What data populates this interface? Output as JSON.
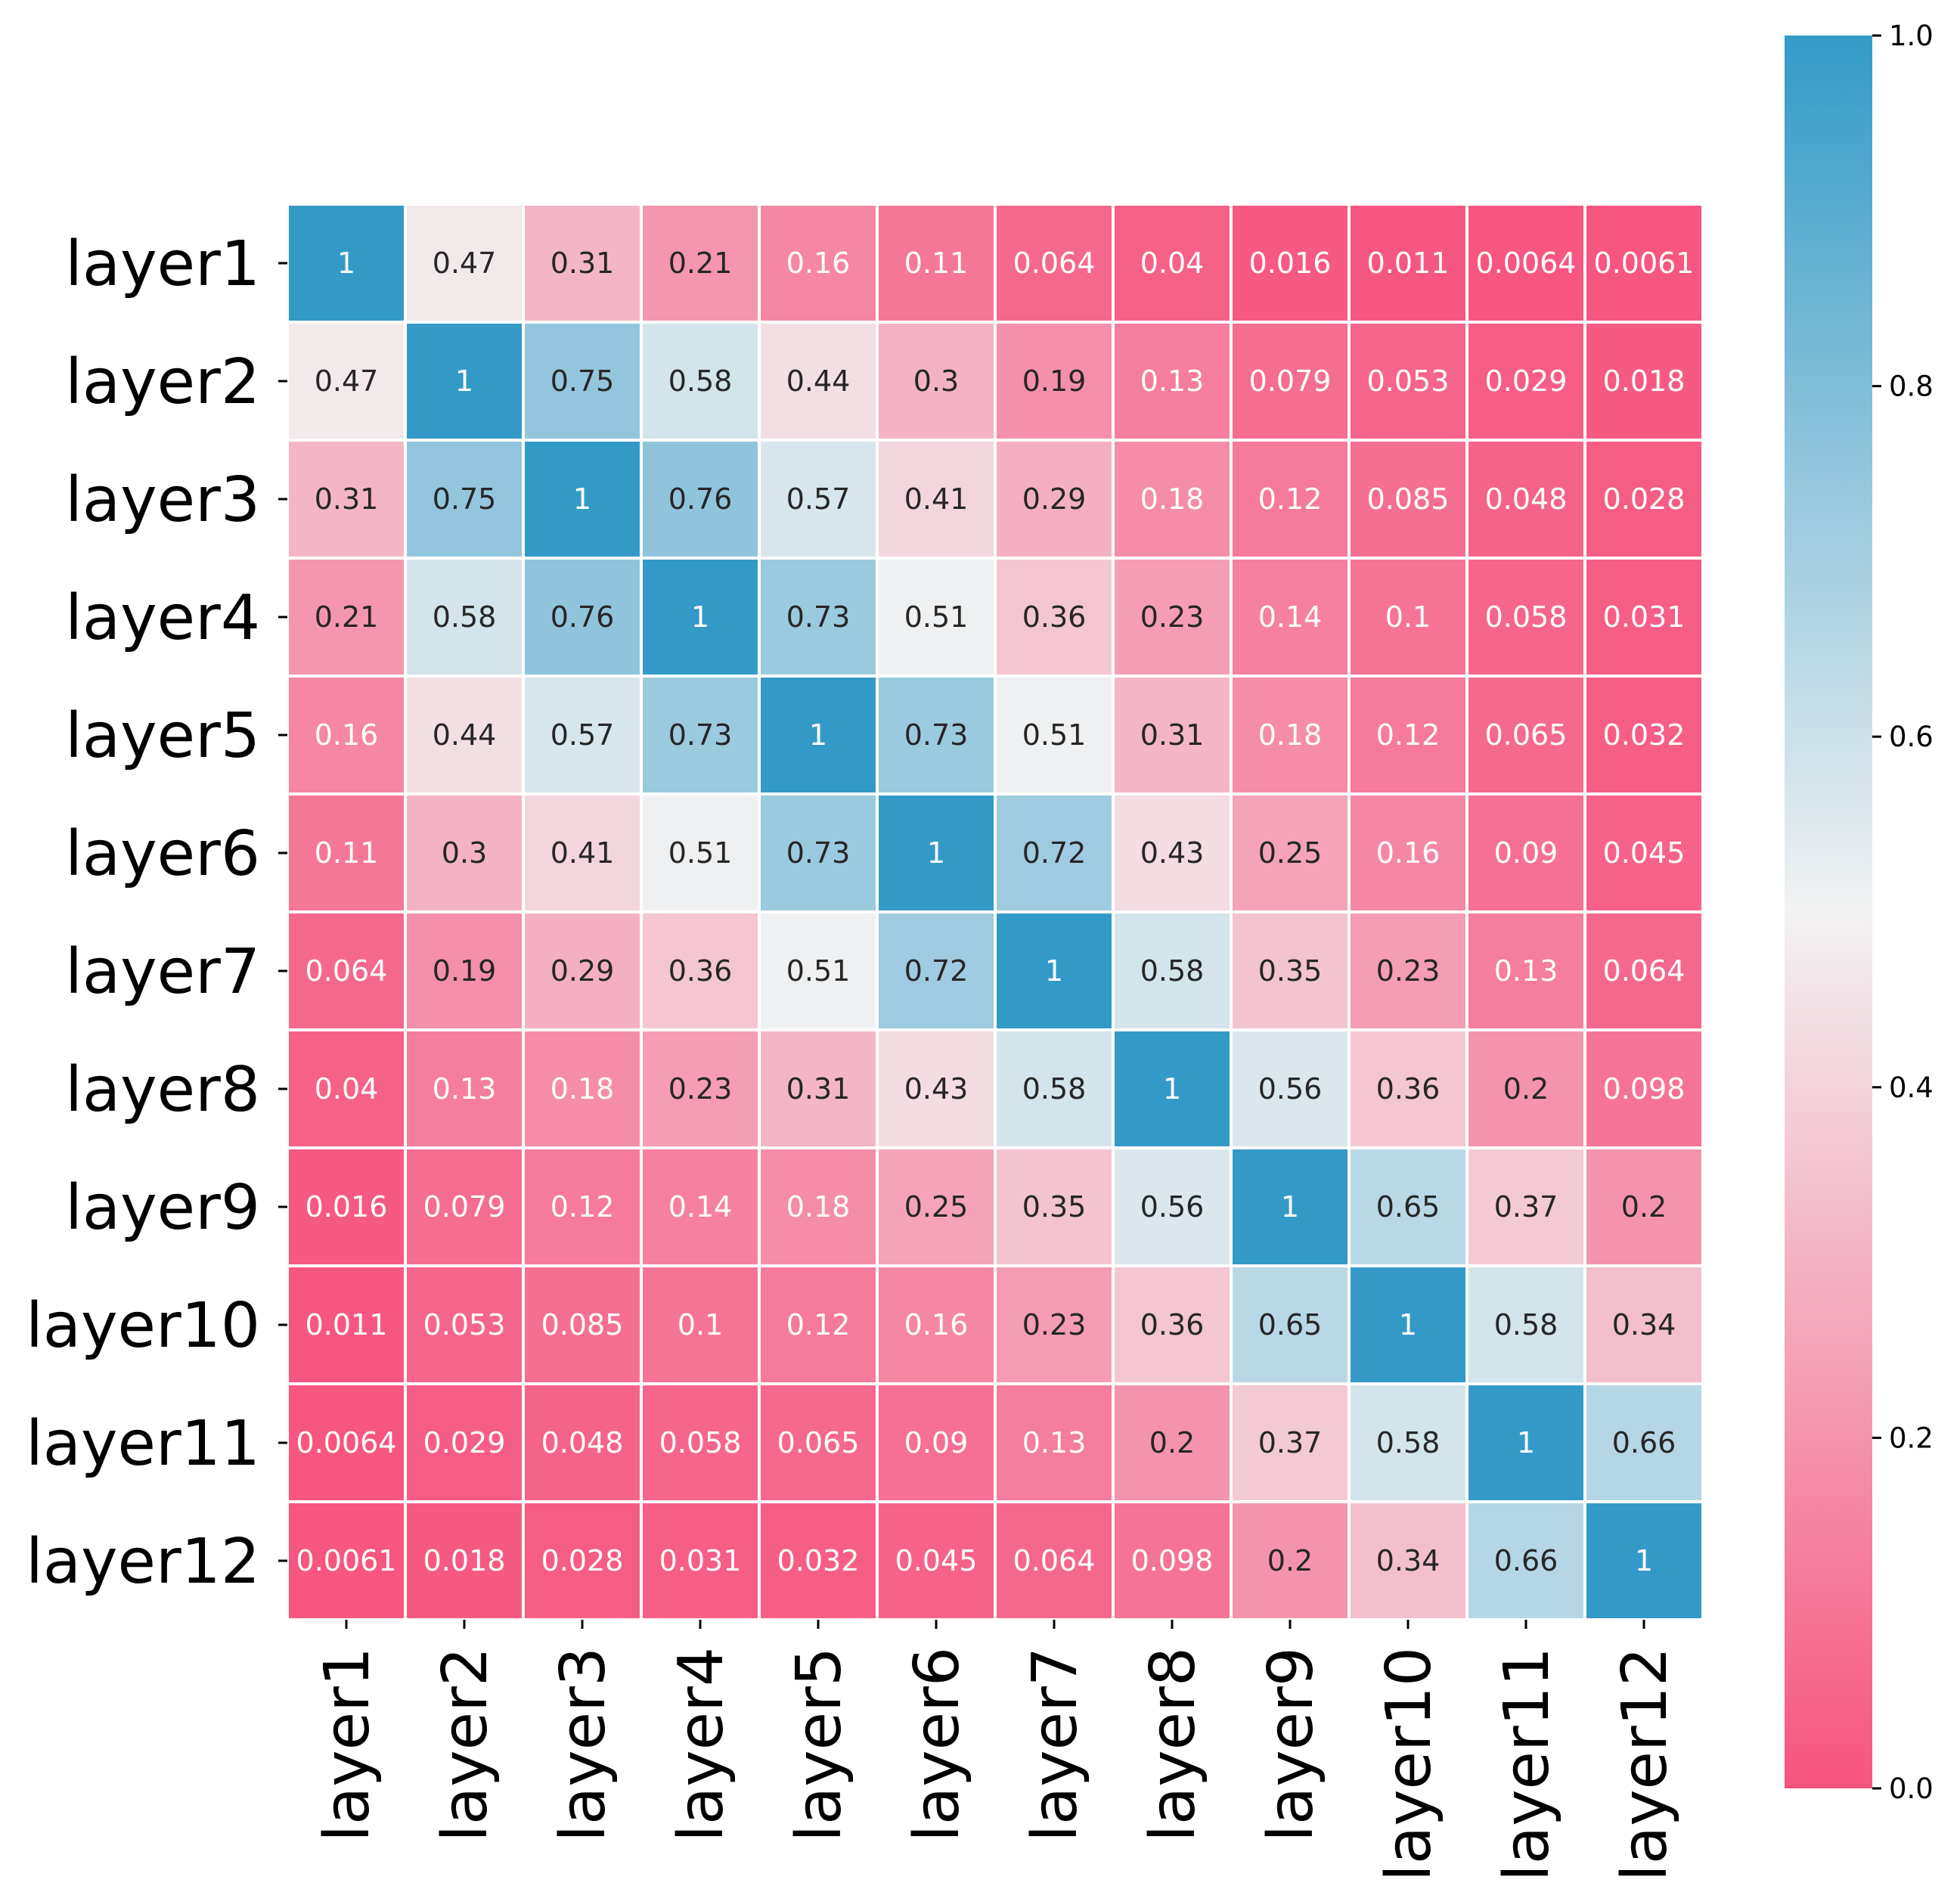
{
  "chart_data": {
    "type": "heatmap",
    "title": "",
    "xlabel": "",
    "ylabel": "",
    "x_categories": [
      "layer1",
      "layer2",
      "layer3",
      "layer4",
      "layer5",
      "layer6",
      "layer7",
      "layer8",
      "layer9",
      "layer10",
      "layer11",
      "layer12"
    ],
    "y_categories": [
      "layer1",
      "layer2",
      "layer3",
      "layer4",
      "layer5",
      "layer6",
      "layer7",
      "layer8",
      "layer9",
      "layer10",
      "layer11",
      "layer12"
    ],
    "values": [
      [
        1,
        0.47,
        0.31,
        0.21,
        0.16,
        0.11,
        0.064,
        0.04,
        0.016,
        0.011,
        0.0064,
        0.0061
      ],
      [
        0.47,
        1,
        0.75,
        0.58,
        0.44,
        0.3,
        0.19,
        0.13,
        0.079,
        0.053,
        0.029,
        0.018
      ],
      [
        0.31,
        0.75,
        1,
        0.76,
        0.57,
        0.41,
        0.29,
        0.18,
        0.12,
        0.085,
        0.048,
        0.028
      ],
      [
        0.21,
        0.58,
        0.76,
        1,
        0.73,
        0.51,
        0.36,
        0.23,
        0.14,
        0.1,
        0.058,
        0.031
      ],
      [
        0.16,
        0.44,
        0.57,
        0.73,
        1,
        0.73,
        0.51,
        0.31,
        0.18,
        0.12,
        0.065,
        0.032
      ],
      [
        0.11,
        0.3,
        0.41,
        0.51,
        0.73,
        1,
        0.72,
        0.43,
        0.25,
        0.16,
        0.09,
        0.045
      ],
      [
        0.064,
        0.19,
        0.29,
        0.36,
        0.51,
        0.72,
        1,
        0.58,
        0.35,
        0.23,
        0.13,
        0.064
      ],
      [
        0.04,
        0.13,
        0.18,
        0.23,
        0.31,
        0.43,
        0.58,
        1,
        0.56,
        0.36,
        0.2,
        0.098
      ],
      [
        0.016,
        0.079,
        0.12,
        0.14,
        0.18,
        0.25,
        0.35,
        0.56,
        1,
        0.65,
        0.37,
        0.2
      ],
      [
        0.011,
        0.053,
        0.085,
        0.1,
        0.12,
        0.16,
        0.23,
        0.36,
        0.65,
        1,
        0.58,
        0.34
      ],
      [
        0.0064,
        0.029,
        0.048,
        0.058,
        0.065,
        0.09,
        0.13,
        0.2,
        0.37,
        0.58,
        1,
        0.66
      ],
      [
        0.0061,
        0.018,
        0.028,
        0.031,
        0.032,
        0.045,
        0.064,
        0.098,
        0.2,
        0.34,
        0.66,
        1
      ]
    ],
    "colorbar": {
      "range": [
        0,
        1
      ],
      "ticks": [
        0,
        0.2,
        0.4,
        0.6,
        0.8,
        1.0
      ],
      "tick_labels": [
        "0.0",
        "0.2",
        "0.4",
        "0.6",
        "0.8",
        "1.0"
      ]
    },
    "colormap": {
      "low": "#f6547f",
      "mid": "#f2f2f2",
      "high": "#339ac7"
    },
    "grid_line_color": "#ffffff",
    "annotation_dark_text_color": "#262626",
    "annotation_light_text_color": "#ffffff"
  }
}
